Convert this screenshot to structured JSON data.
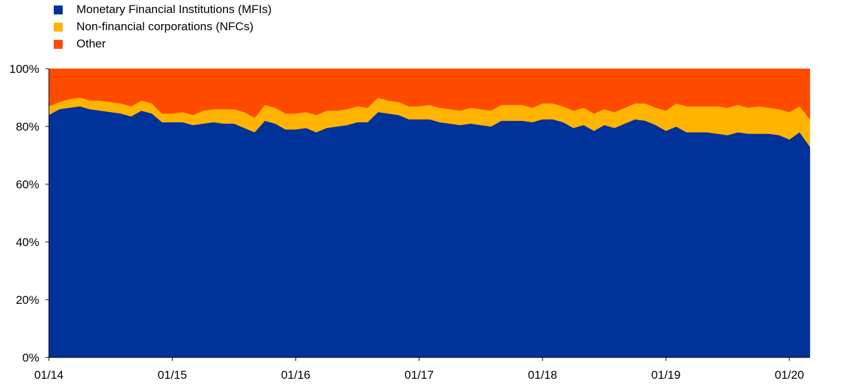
{
  "chart_data": {
    "type": "area",
    "stacked": true,
    "normalized_percent": true,
    "title": "",
    "xlabel": "",
    "ylabel": "",
    "ylim": [
      0,
      100
    ],
    "y_ticks": [
      0,
      20,
      40,
      60,
      80,
      100
    ],
    "y_tick_labels": [
      "0%",
      "20%",
      "40%",
      "60%",
      "80%",
      "100%"
    ],
    "x_tick_labels": [
      "01/14",
      "01/15",
      "01/16",
      "01/17",
      "01/18",
      "01/19",
      "01/20"
    ],
    "x_tick_index": [
      0,
      12,
      24,
      36,
      48,
      60,
      72
    ],
    "grid": false,
    "legend_position": "top-left",
    "x": [
      "01/14",
      "02/14",
      "03/14",
      "04/14",
      "05/14",
      "06/14",
      "07/14",
      "08/14",
      "09/14",
      "10/14",
      "11/14",
      "12/14",
      "01/15",
      "02/15",
      "03/15",
      "04/15",
      "05/15",
      "06/15",
      "07/15",
      "08/15",
      "09/15",
      "10/15",
      "11/15",
      "12/15",
      "01/16",
      "02/16",
      "03/16",
      "04/16",
      "05/16",
      "06/16",
      "07/16",
      "08/16",
      "09/16",
      "10/16",
      "11/16",
      "12/16",
      "01/17",
      "02/17",
      "03/17",
      "04/17",
      "05/17",
      "06/17",
      "07/17",
      "08/17",
      "09/17",
      "10/17",
      "11/17",
      "12/17",
      "01/18",
      "02/18",
      "03/18",
      "04/18",
      "05/18",
      "06/18",
      "07/18",
      "08/18",
      "09/18",
      "10/18",
      "11/18",
      "12/18",
      "01/19",
      "02/19",
      "03/19",
      "04/19",
      "05/19",
      "06/19",
      "07/19",
      "08/19",
      "09/19",
      "10/19",
      "11/19",
      "12/19",
      "01/20",
      "02/20",
      "03/20"
    ],
    "series": [
      {
        "name": "Monetary Financial Institutions (MFIs)",
        "color": "#003299",
        "values": [
          84,
          86,
          86.5,
          87,
          86,
          85.5,
          85,
          84.5,
          83.5,
          85.5,
          84.5,
          81.5,
          81.5,
          81.5,
          80.5,
          81,
          81.5,
          81,
          81,
          79.5,
          78,
          82,
          81,
          79,
          79,
          79.5,
          78,
          79.5,
          80,
          80.5,
          81.5,
          81.5,
          85,
          84.5,
          84,
          82.5,
          82.5,
          82.5,
          81.5,
          81,
          80.5,
          81,
          80.5,
          80,
          82,
          82,
          82,
          81.5,
          82.5,
          82.5,
          81.5,
          79.5,
          80.5,
          78.5,
          80.5,
          79.5,
          81,
          82.5,
          82,
          80.5,
          78.5,
          80,
          78,
          78,
          78,
          77.5,
          77,
          78,
          77.5,
          77.5,
          77.5,
          77,
          75.5,
          78,
          73
        ]
      },
      {
        "name": "Non-financial corporations (NFCs)",
        "color": "#FFB400",
        "values": [
          3,
          2.5,
          3,
          3,
          3,
          3.5,
          3.5,
          3.5,
          3.5,
          3.5,
          3.5,
          3,
          3,
          3.5,
          3.5,
          4.5,
          4.5,
          5,
          5,
          5.5,
          5,
          5.5,
          5.5,
          5.5,
          5.5,
          5.5,
          6,
          6,
          5.5,
          5.5,
          5.5,
          5,
          5,
          4.5,
          4.5,
          4.5,
          4.5,
          5,
          5,
          5,
          5,
          5.5,
          5.5,
          5.5,
          5.5,
          5.5,
          5.5,
          5,
          5.5,
          5.5,
          5.5,
          6,
          6,
          6,
          5.5,
          5.5,
          5.5,
          5.5,
          6,
          6,
          7,
          8,
          9,
          9,
          9,
          9.5,
          9.5,
          9.5,
          9,
          9.5,
          9,
          9,
          9.5,
          9,
          9.5
        ]
      },
      {
        "name": "Other",
        "color": "#FF4B00",
        "values": [
          13,
          11.5,
          10.5,
          10,
          11,
          11,
          11.5,
          12,
          13,
          11,
          12,
          15.5,
          15.5,
          15,
          16,
          14.5,
          14,
          14,
          14,
          15,
          17,
          12.5,
          13.5,
          15.5,
          15.5,
          15,
          16,
          14.5,
          14.5,
          14,
          13,
          13.5,
          10,
          11,
          11.5,
          13,
          13,
          12.5,
          13.5,
          14,
          14.5,
          13.5,
          14,
          14.5,
          12.5,
          12.5,
          12.5,
          13.5,
          12,
          12,
          13,
          14.5,
          13.5,
          15.5,
          14,
          15,
          13.5,
          12,
          12,
          13.5,
          14.5,
          12,
          13,
          13,
          13,
          13,
          13.5,
          12.5,
          13.5,
          13,
          13.5,
          14,
          15,
          13,
          17.5
        ]
      }
    ]
  }
}
